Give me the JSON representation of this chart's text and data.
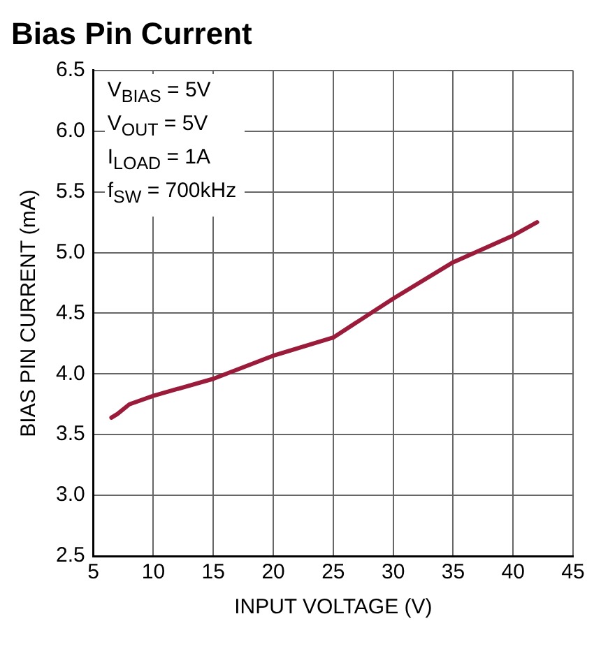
{
  "chart_data": {
    "type": "line",
    "title": "Bias Pin Current",
    "xlabel": "INPUT VOLTAGE (V)",
    "ylabel": "BIAS PIN CURRENT (mA)",
    "annotations": [
      "V$_{BIAS}$ = 5V",
      "V$_{OUT}$ = 5V",
      "I$_{LOAD}$ = 1A",
      "f$_{SW}$ = 700kHz"
    ],
    "series": [
      {
        "color": "#9b1b3b",
        "x": [
          6.5,
          7,
          8,
          10,
          15,
          20,
          25,
          30,
          35,
          40,
          42
        ],
        "values": [
          3.64,
          3.67,
          3.75,
          3.82,
          3.96,
          4.15,
          4.3,
          4.62,
          4.92,
          5.14,
          5.25
        ]
      }
    ],
    "xlim": [
      5,
      45
    ],
    "xticks": [
      5,
      10,
      15,
      20,
      25,
      30,
      35,
      40,
      45
    ],
    "ylim": [
      2.5,
      6.5
    ],
    "yticks": [
      2.5,
      {
        "value": 3,
        "label": "3.0"
      },
      3.5,
      {
        "value": 4,
        "label": "4.0"
      },
      4.5,
      {
        "value": 5,
        "label": "5.0"
      },
      5.5,
      {
        "value": 6,
        "label": "6.0"
      },
      6.5
    ],
    "grid": true,
    "legend": false,
    "marker": "none",
    "line_style": "solid"
  }
}
